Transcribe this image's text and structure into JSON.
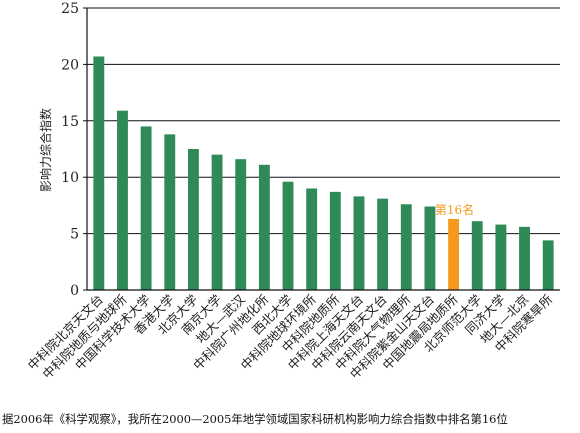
{
  "chart_data": {
    "type": "bar",
    "ylabel": "影响力综合指数",
    "ylim": [
      0,
      25
    ],
    "yticks": [
      0,
      5,
      10,
      15,
      20,
      25
    ],
    "grid": true,
    "bar_color": "#2e8b57",
    "highlight_color": "#f39a1e",
    "highlight_index": 15,
    "annotation": "第16名",
    "categories": [
      "中科院北京天文台",
      "中科院地质与地球所",
      "中国科学技术大学",
      "香港大学",
      "北京大学",
      "南京大学",
      "地大—武汉",
      "中科院广州地化所",
      "西北大学",
      "中科院地球环境所",
      "中科院地质所",
      "中科院上海天文台",
      "中科院云南天文台",
      "中科院大气物理所",
      "中科院紫金山天文台",
      "中国地震局地质所",
      "北京师范大学",
      "同济大学",
      "地大—北京",
      "中科院寒旱所"
    ],
    "values": [
      20.7,
      15.9,
      14.5,
      13.8,
      12.5,
      12.0,
      11.6,
      11.1,
      9.6,
      9.0,
      8.7,
      8.3,
      8.1,
      7.6,
      7.4,
      6.3,
      6.1,
      5.8,
      5.6,
      4.4
    ]
  },
  "caption": "据2006年《科学观察》，我所在2000—2005年地学领域国家科研机构影响力综合指数中排名第16位"
}
